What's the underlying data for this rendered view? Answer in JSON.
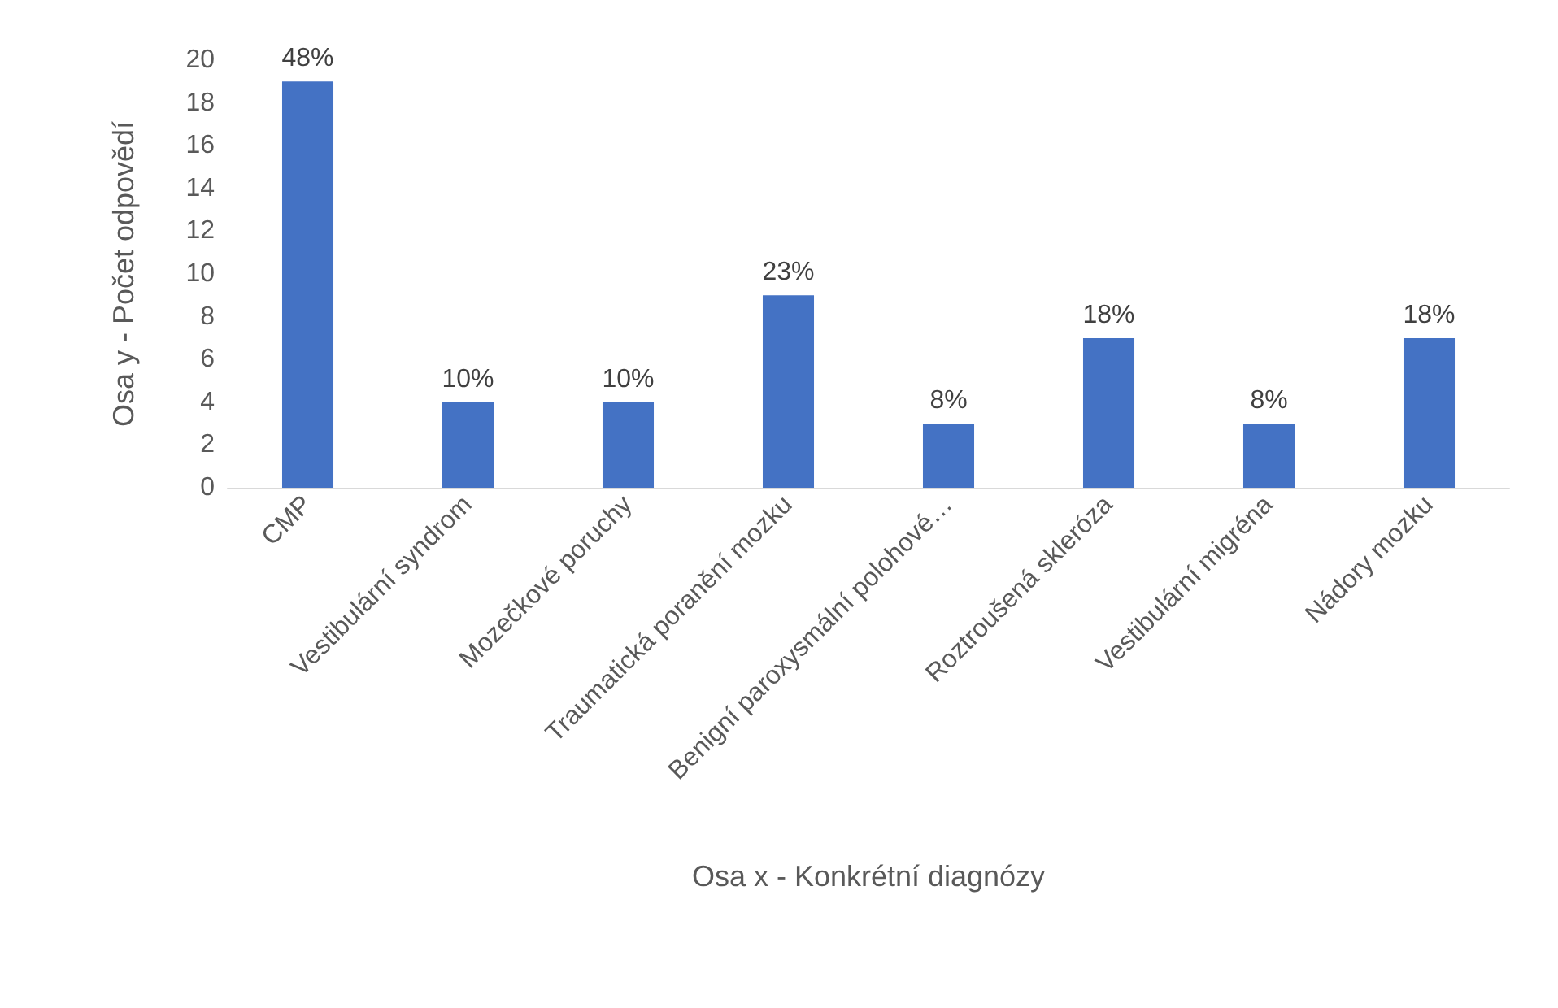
{
  "chart_data": {
    "type": "bar",
    "xlabel": "Osa x - Konkrétní diagnózy",
    "ylabel": "Osa y - Počet odpovědí",
    "categories": [
      "CMP",
      "Vestibulární syndrom",
      "Mozečkové poruchy",
      "Traumatická poranění mozku",
      "Benigní paroxysmální polohové…",
      "Roztroušená skleróza",
      "Vestibulární migréna",
      "Nádory mozku"
    ],
    "values": [
      19,
      4,
      4,
      9,
      3,
      7,
      3,
      7
    ],
    "annotations": [
      {
        "text": "48%",
        "x": "CMP",
        "y": 19
      },
      {
        "text": "10%",
        "x": "Vestibulární syndrom",
        "y": 4
      },
      {
        "text": "10%",
        "x": "Mozečkové poruchy",
        "y": 4
      },
      {
        "text": "23%",
        "x": "Traumatická poranění mozku",
        "y": 9
      },
      {
        "text": "8%",
        "x": "Benigní paroxysmální polohové…",
        "y": 3
      },
      {
        "text": "18%",
        "x": "Roztroušená skleróza",
        "y": 7
      },
      {
        "text": "8%",
        "x": "Vestibulární migréna",
        "y": 3
      },
      {
        "text": "18%",
        "x": "Nádory mozku",
        "y": 7
      }
    ],
    "color": "#4472c4",
    "ylim": [
      0,
      20
    ],
    "yticks": [
      0,
      2,
      4,
      6,
      8,
      10,
      12,
      14,
      16,
      18,
      20
    ],
    "grid": false
  }
}
